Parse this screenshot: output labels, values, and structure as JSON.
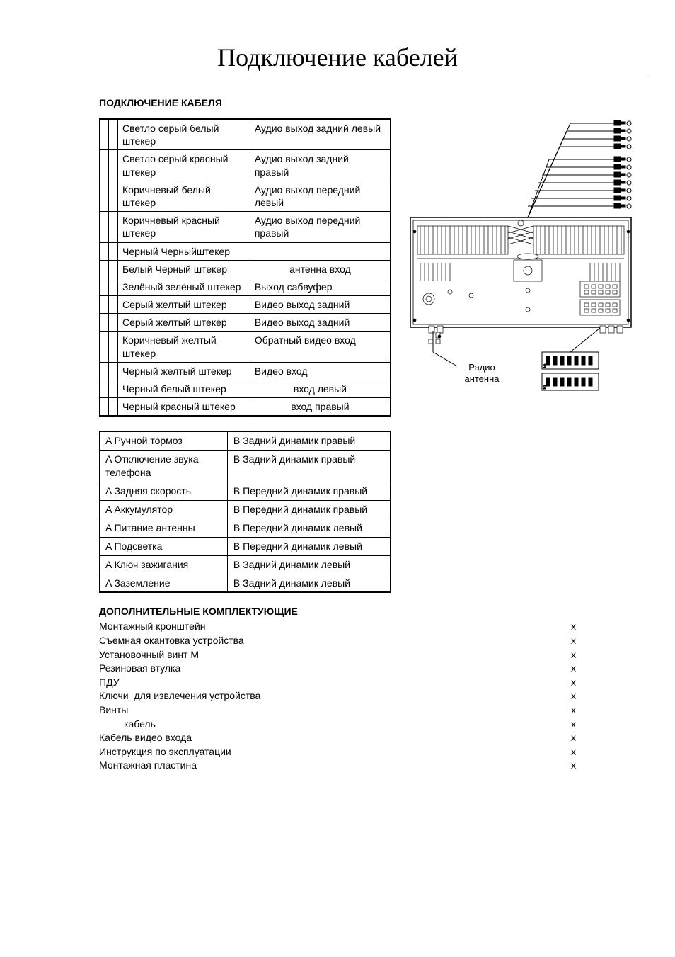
{
  "page": {
    "title": "Подключение кабелей",
    "section_cable": "ПОДКЛЮЧЕНИЕ КАБЕЛЯ",
    "section_accessories": "ДОПОЛНИТЕЛЬНЫЕ КОМПЛЕКТУЮЩИЕ"
  },
  "cable_rows": [
    {
      "l": "Светло серый белый штекер",
      "r": "Аудио выход  задний левый",
      "c": false
    },
    {
      "l": "Светло серый красный штекер",
      "r": "Аудио выход  задний правый",
      "c": false
    },
    {
      "l": "Коричневый белый штекер",
      "r": "Аудио выход передний  левый",
      "c": false
    },
    {
      "l": "Коричневый красный штекер",
      "r": "Аудио выход передний  правый",
      "c": false
    },
    {
      "l": "Черный Черныйштекер",
      "r": "",
      "c": false
    },
    {
      "l": "Белый Черный штекер",
      "r": "антенна вход",
      "c": true
    },
    {
      "l": "Зелёный зелёный штекер",
      "r": "Выход  сабвуфер",
      "c": false
    },
    {
      "l": "Серый желтый штекер",
      "r": "Видео выход задний",
      "c": false
    },
    {
      "l": "Серый желтый штекер",
      "r": "Видео выход задний",
      "c": false
    },
    {
      "l": "Коричневый желтый штекер",
      "r": "Обратный видео вход",
      "c": false
    },
    {
      "l": "Черный желтый штекер",
      "r": "Видео вход",
      "c": false
    },
    {
      "l": "Черный белый штекер",
      "r": "вход  левый",
      "c": true
    },
    {
      "l": "Черный красный штекер",
      "r": "вход  правый",
      "c": true
    }
  ],
  "pin_rows": [
    {
      "a": "A    Ручной тормоз",
      "b": "B       Задний   динамик правый"
    },
    {
      "a": "A    Отключение звука телефона",
      "b": "B       Задний   динамик правый"
    },
    {
      "a": "A    Задняя скорость",
      "b": "B       Передний   динамик правый"
    },
    {
      "a": "A    Аккумулятор",
      "b": "B       Передний   динамик правый"
    },
    {
      "a": "A    Питание антенны",
      "b": "B       Передний   динамик левый"
    },
    {
      "a": "A    Подсветка",
      "b": "B       Передний   динамик левый"
    },
    {
      "a": "A    Ключ зажигания",
      "b": "B    Задний динамик левый"
    },
    {
      "a": "A    Заземление",
      "b": "B    Задний динамик левый"
    }
  ],
  "accessories": [
    {
      "name": "Монтажный кронштейн",
      "qty": "x"
    },
    {
      "name": "Съемная окантовка устройства",
      "qty": "x"
    },
    {
      "name": "Установочный винт М",
      "qty": "x"
    },
    {
      "name": "Резиновая втулка",
      "qty": "x"
    },
    {
      "name": "ПДУ",
      "qty": "x"
    },
    {
      "name": "Ключи  для извлечения устройства",
      "qty": "x"
    },
    {
      "name": "Винты",
      "qty": "x"
    },
    {
      "name": "         кабель",
      "qty": "x"
    },
    {
      "name": "Кабель видео входа",
      "qty": "x"
    },
    {
      "name": "Инструкция по эксплуатации",
      "qty": "x"
    },
    {
      "name": "Монтажная пластина",
      "qty": "x"
    }
  ],
  "diagram": {
    "antenna_label": "Радио антенна"
  }
}
